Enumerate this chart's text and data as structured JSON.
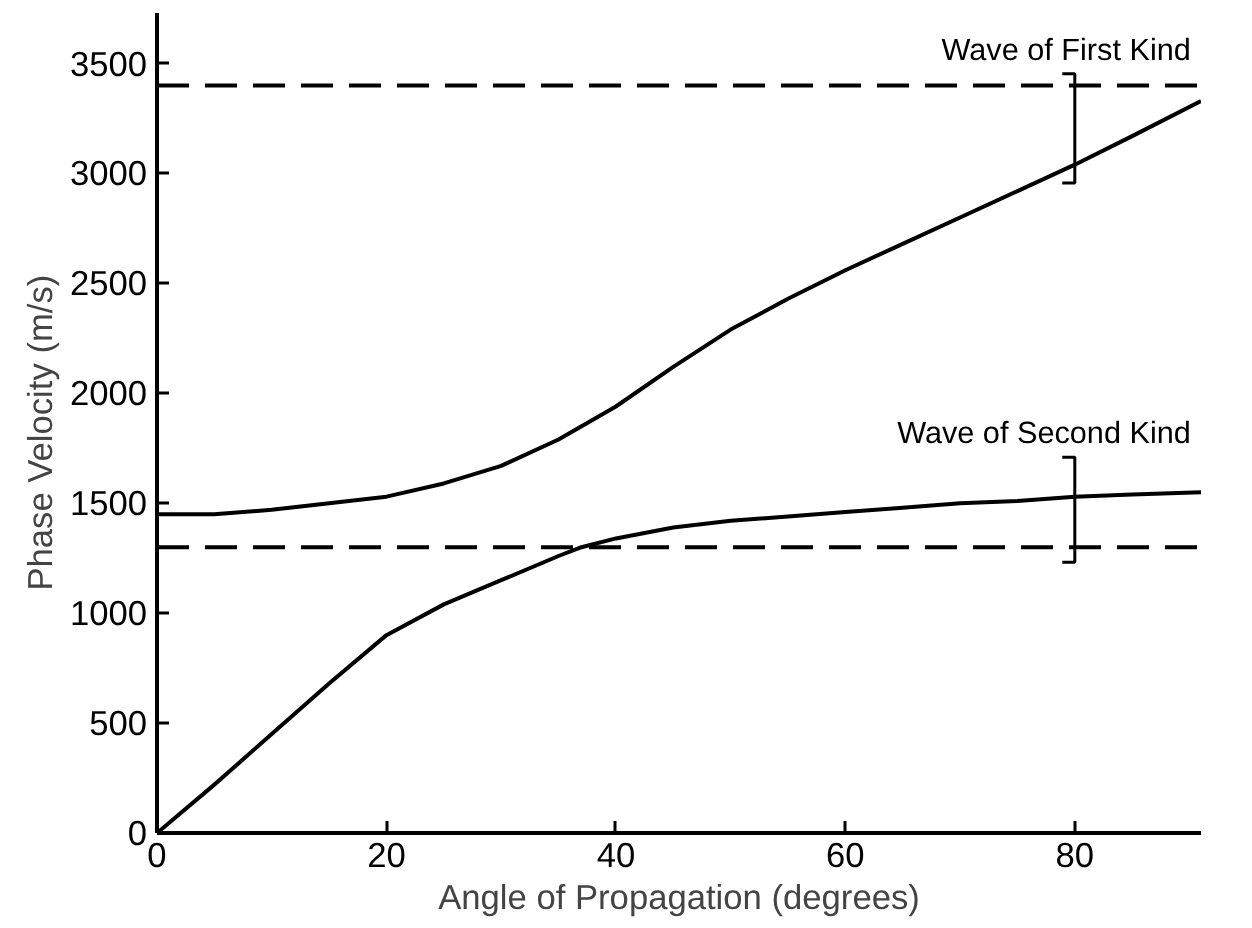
{
  "chart_data": {
    "type": "line",
    "xlabel": "Angle of Propagation (degrees)",
    "ylabel": "Phase  Velocity  (m/s)",
    "xlim": [
      0,
      91
    ],
    "ylim": [
      0,
      3730
    ],
    "xticks": [
      0,
      20,
      40,
      60,
      80
    ],
    "yticks": [
      0,
      500,
      1000,
      1500,
      2000,
      2500,
      3000,
      3500
    ],
    "grid": false,
    "line_style": "solid",
    "series": [
      {
        "color": "#000000",
        "x": [
          0,
          5,
          10,
          15,
          20,
          25,
          30,
          35,
          40,
          45,
          50,
          55,
          60,
          65,
          70,
          75,
          80,
          85,
          91
        ],
        "values": [
          1450,
          1450,
          1470,
          1500,
          1530,
          1590,
          1670,
          1790,
          1940,
          2120,
          2290,
          2430,
          2560,
          2680,
          2800,
          2920,
          3040,
          3170,
          3330
        ]
      },
      {
        "color": "#000000",
        "x": [
          0,
          5,
          10,
          15,
          20,
          25,
          30,
          35,
          37,
          40,
          45,
          50,
          55,
          60,
          65,
          70,
          75,
          80,
          85,
          91
        ],
        "values": [
          0,
          220,
          450,
          680,
          900,
          1040,
          1150,
          1260,
          1300,
          1340,
          1390,
          1420,
          1440,
          1460,
          1480,
          1500,
          1510,
          1530,
          1540,
          1550
        ]
      }
    ],
    "ref_lines": [
      {
        "axis": "y",
        "value": 3400,
        "color": "#000000",
        "line_style": "dashed"
      },
      {
        "axis": "y",
        "value": 1300,
        "color": "#000000",
        "line_style": "dashed"
      }
    ],
    "annotations": [
      {
        "text": "Wave of First Kind",
        "x": 80,
        "y": 3400
      },
      {
        "text": "Wave of Second Kind",
        "x": 80,
        "y": 1550
      }
    ]
  }
}
